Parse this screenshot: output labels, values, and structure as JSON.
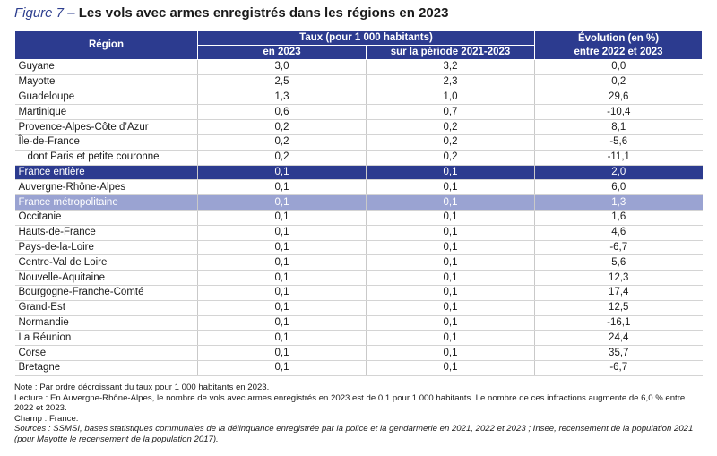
{
  "figure": {
    "label": "Figure 7 –",
    "title": "Les vols avec armes enregistrés dans les régions en 2023"
  },
  "table": {
    "headers": {
      "region": "Région",
      "taux": "Taux (pour 1 000 habitants)",
      "taux_2023": "en 2023",
      "taux_periode": "sur la période 2021-2023",
      "evolution_line1": "Évolution (en %)",
      "evolution_line2": "entre 2022 et 2023"
    },
    "rows": [
      {
        "region": "Guyane",
        "t2023": "3,0",
        "tper": "3,2",
        "evo": "0,0",
        "style": ""
      },
      {
        "region": "Mayotte",
        "t2023": "2,5",
        "tper": "2,3",
        "evo": "0,2",
        "style": ""
      },
      {
        "region": "Guadeloupe",
        "t2023": "1,3",
        "tper": "1,0",
        "evo": "29,6",
        "style": ""
      },
      {
        "region": "Martinique",
        "t2023": "0,6",
        "tper": "0,7",
        "evo": "-10,4",
        "style": ""
      },
      {
        "region": "Provence-Alpes-Côte d’Azur",
        "t2023": "0,2",
        "tper": "0,2",
        "evo": "8,1",
        "style": ""
      },
      {
        "region": "Île-de-France",
        "t2023": "0,2",
        "tper": "0,2",
        "evo": "-5,6",
        "style": ""
      },
      {
        "region": "dont Paris et petite couronne",
        "t2023": "0,2",
        "tper": "0,2",
        "evo": "-11,1",
        "style": "indent"
      },
      {
        "region": "France entière",
        "t2023": "0,1",
        "tper": "0,1",
        "evo": "2,0",
        "style": "hl-dark"
      },
      {
        "region": "Auvergne-Rhône-Alpes",
        "t2023": "0,1",
        "tper": "0,1",
        "evo": "6,0",
        "style": ""
      },
      {
        "region": "France métropolitaine",
        "t2023": "0,1",
        "tper": "0,1",
        "evo": "1,3",
        "style": "hl-light"
      },
      {
        "region": "Occitanie",
        "t2023": "0,1",
        "tper": "0,1",
        "evo": "1,6",
        "style": ""
      },
      {
        "region": "Hauts-de-France",
        "t2023": "0,1",
        "tper": "0,1",
        "evo": "4,6",
        "style": ""
      },
      {
        "region": "Pays-de-la-Loire",
        "t2023": "0,1",
        "tper": "0,1",
        "evo": "-6,7",
        "style": ""
      },
      {
        "region": "Centre-Val de Loire",
        "t2023": "0,1",
        "tper": "0,1",
        "evo": "5,6",
        "style": ""
      },
      {
        "region": "Nouvelle-Aquitaine",
        "t2023": "0,1",
        "tper": "0,1",
        "evo": "12,3",
        "style": ""
      },
      {
        "region": "Bourgogne-Franche-Comté",
        "t2023": "0,1",
        "tper": "0,1",
        "evo": "17,4",
        "style": ""
      },
      {
        "region": "Grand-Est",
        "t2023": "0,1",
        "tper": "0,1",
        "evo": "12,5",
        "style": ""
      },
      {
        "region": "Normandie",
        "t2023": "0,1",
        "tper": "0,1",
        "evo": "-16,1",
        "style": ""
      },
      {
        "region": "La Réunion",
        "t2023": "0,1",
        "tper": "0,1",
        "evo": "24,4",
        "style": ""
      },
      {
        "region": "Corse",
        "t2023": "0,1",
        "tper": "0,1",
        "evo": "35,7",
        "style": ""
      },
      {
        "region": "Bretagne",
        "t2023": "0,1",
        "tper": "0,1",
        "evo": "-6,7",
        "style": ""
      }
    ]
  },
  "notes": {
    "note_label": "Note :",
    "note_text": "Par ordre décroissant du taux pour 1 000 habitants en 2023.",
    "lecture_label": "Lecture :",
    "lecture_text": "En Auvergne-Rhône-Alpes, le nombre de vols avec armes enregistrés en 2023 est de 0,1 pour 1 000 habitants. Le nombre de ces infractions augmente de 6,0 % entre 2022 et 2023.",
    "champ_label": "Champ :",
    "champ_text": "France.",
    "sources_label": "Sources :",
    "sources_text": "SSMSI, bases statistiques communales de la délinquance enregistrée par la police et la gendarmerie en 2021, 2022 et 2023 ; Insee, recensement de la population 2021 (pour Mayotte le recensement de la population 2017)."
  },
  "colors": {
    "header_bg": "#2c3b8f",
    "highlight_dark": "#2c3b8f",
    "highlight_light": "#9aa3d2",
    "title_label": "#2e3f8f"
  }
}
